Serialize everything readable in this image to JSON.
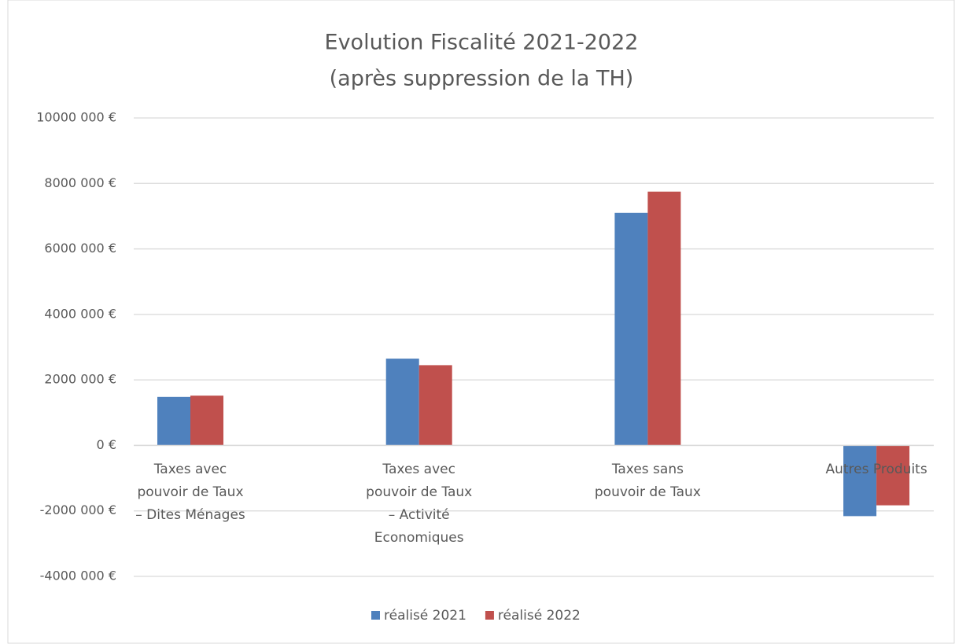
{
  "chart_data": {
    "type": "bar",
    "title": [
      "Evolution Fiscalité 2021-2022",
      "(après suppression de la TH)"
    ],
    "categories": [
      "Taxes avec pouvoir de Taux – Dites Ménages",
      "Taxes avec pouvoir de Taux – Activité Economiques",
      "Taxes sans pouvoir de Taux",
      "Autres Produits"
    ],
    "series": [
      {
        "name": "réalisé 2021",
        "color": "#4f81bd",
        "values": [
          1480000,
          2650000,
          7100000,
          -2160000
        ]
      },
      {
        "name": "réalisé 2022",
        "color": "#c0504d",
        "values": [
          1520000,
          2450000,
          7750000,
          -1830000
        ]
      }
    ],
    "ylim": [
      -4000000,
      10000000
    ],
    "yticks": [
      {
        "value": -4000000,
        "label": "-4000 000 €"
      },
      {
        "value": -2000000,
        "label": "-2000 000 €"
      },
      {
        "value": 0,
        "label": "0 €"
      },
      {
        "value": 2000000,
        "label": "2000 000 €"
      },
      {
        "value": 4000000,
        "label": "4000 000 €"
      },
      {
        "value": 6000000,
        "label": "6000 000 €"
      },
      {
        "value": 8000000,
        "label": "8000 000 €"
      },
      {
        "value": 10000000,
        "label": "10000 000 €"
      }
    ],
    "grid": true,
    "legend": "bottom"
  }
}
